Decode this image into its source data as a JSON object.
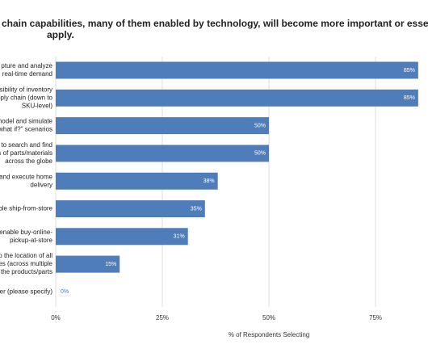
{
  "chart_data": {
    "type": "barh",
    "title": [
      "chain capabilities, many of them enabled by technology, will become more important or essential moving fo",
      "apply."
    ],
    "categories": [
      [
        "pture and analyze",
        "real-time demand"
      ],
      [
        "sibility of inventory",
        "pply chain (down to",
        "SKU-level)"
      ],
      [
        "model and simulate",
        "what if?\" scenarios"
      ],
      [
        "to search and find",
        "s of parts/materials",
        "across the globe"
      ],
      [
        "and execute home",
        "delivery"
      ],
      [
        "ble ship-from-store"
      ],
      [
        "enable buy-online-",
        "pickup-at-store"
      ],
      [
        "o the location of all",
        "es (across multiple",
        "the products/parts"
      ],
      [
        "er (please specify)"
      ]
    ],
    "values": [
      85,
      85,
      50,
      50,
      38,
      35,
      31,
      15,
      0
    ],
    "value_labels": [
      "85%",
      "85%",
      "50%",
      "50%",
      "38%",
      "35%",
      "31%",
      "15%",
      "0%"
    ],
    "color": "#4f7dba",
    "xlim": [
      0,
      87.3
    ],
    "xticks": [
      {
        "value": 0,
        "label": "0%"
      },
      {
        "value": 25,
        "label": "25%"
      },
      {
        "value": 50,
        "label": "50%"
      },
      {
        "value": 75,
        "label": "75%"
      }
    ],
    "xlabel": "% of Respondents Selecting",
    "grid": true
  }
}
